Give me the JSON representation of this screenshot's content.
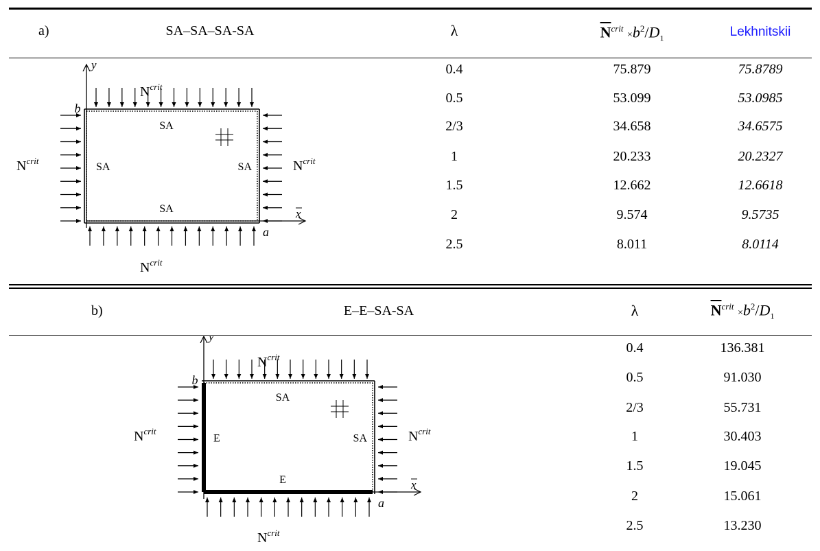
{
  "table_a": {
    "label": "a)",
    "case": "SA–SA–SA-SA",
    "col_lambda": "λ",
    "col_ncrit": {
      "N": "N",
      "sup": "crit",
      "times": "×",
      "b2": "b",
      "b2exp": "2",
      "slash": "/",
      "D": "D",
      "Dsub": "1"
    },
    "col_ref": "Lekhnitskii",
    "rows": [
      {
        "lambda": "0.4",
        "ncrit": "75.879",
        "ref": "75.8789"
      },
      {
        "lambda": "0.5",
        "ncrit": "53.099",
        "ref": "53.0985"
      },
      {
        "lambda": "2/3",
        "ncrit": "34.658",
        "ref": "34.6575"
      },
      {
        "lambda": "1",
        "ncrit": "20.233",
        "ref": "20.2327"
      },
      {
        "lambda": "1.5",
        "ncrit": "12.662",
        "ref": "12.6618"
      },
      {
        "lambda": "2",
        "ncrit": "9.574",
        "ref": "9.5735"
      },
      {
        "lambda": "2.5",
        "ncrit": "8.011",
        "ref": "8.0114"
      }
    ],
    "diagram": {
      "ncrit": "N",
      "crit": "crit",
      "ylabel": "y",
      "xlabel": "x",
      "b": "b",
      "a": "a",
      "top": "SA",
      "bottom": "SA",
      "left": "SA",
      "right": "SA"
    }
  },
  "table_b": {
    "label": "b)",
    "case": "E–E–SA-SA",
    "col_lambda": "λ",
    "col_ncrit": {
      "N": "N",
      "sup": "crit",
      "times": "×",
      "b2": "b",
      "b2exp": "2",
      "slash": "/",
      "D": "D",
      "Dsub": "1"
    },
    "rows": [
      {
        "lambda": "0.4",
        "ncrit": "136.381"
      },
      {
        "lambda": "0.5",
        "ncrit": "91.030"
      },
      {
        "lambda": "2/3",
        "ncrit": "55.731"
      },
      {
        "lambda": "1",
        "ncrit": "30.403"
      },
      {
        "lambda": "1.5",
        "ncrit": "19.045"
      },
      {
        "lambda": "2",
        "ncrit": "15.061"
      },
      {
        "lambda": "2.5",
        "ncrit": "13.230"
      }
    ],
    "diagram": {
      "ncrit": "N",
      "crit": "crit",
      "ylabel": "y",
      "xlabel": "x",
      "b": "b",
      "a": "a",
      "top": "SA",
      "bottom": "E",
      "left": "E",
      "right": "SA"
    }
  }
}
